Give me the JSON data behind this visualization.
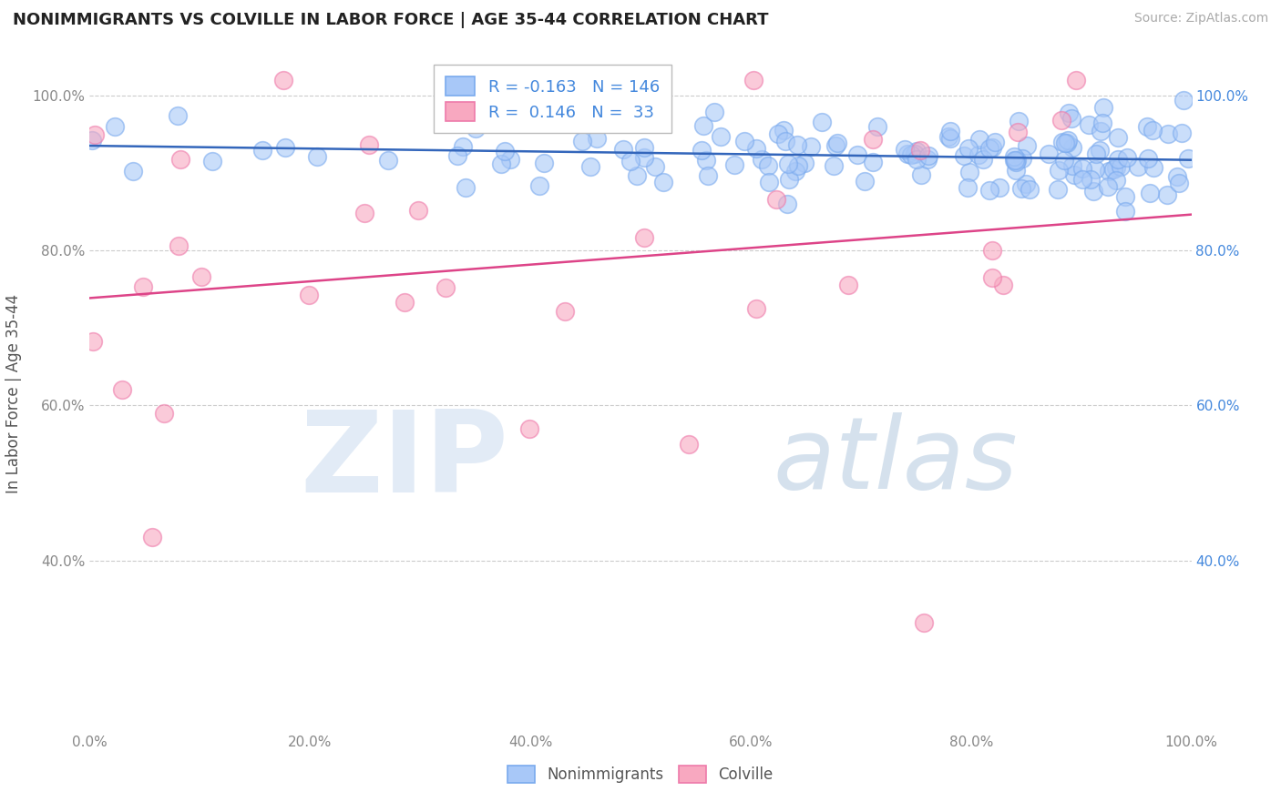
{
  "title": "NONIMMIGRANTS VS COLVILLE IN LABOR FORCE | AGE 35-44 CORRELATION CHART",
  "source": "Source: ZipAtlas.com",
  "ylabel": "In Labor Force | Age 35-44",
  "xlim": [
    0.0,
    1.0
  ],
  "ylim": [
    0.18,
    1.05
  ],
  "blue_R": -0.163,
  "blue_N": 146,
  "pink_R": 0.146,
  "pink_N": 33,
  "blue_color": "#a8c8f8",
  "pink_color": "#f8a8c0",
  "blue_edge": "#7aaaee",
  "pink_edge": "#ee7aaa",
  "blue_line_color": "#3366bb",
  "pink_line_color": "#dd4488",
  "watermark_zip": "ZIP",
  "watermark_atlas": "atlas",
  "legend_labels": [
    "Nonimmigrants",
    "Colville"
  ],
  "right_tick_color": "#4488dd",
  "left_tick_color": "#888888",
  "background_color": "#ffffff",
  "grid_color": "#cccccc",
  "title_color": "#222222",
  "source_color": "#aaaaaa"
}
